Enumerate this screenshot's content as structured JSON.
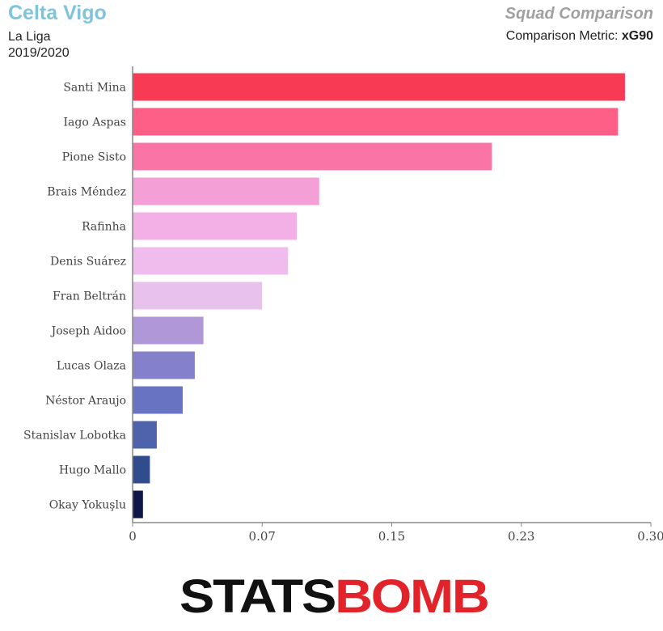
{
  "header": {
    "team": "Celta Vigo",
    "league": "La Liga",
    "season": "2019/2020",
    "title": "Squad Comparison",
    "metric_label": "Comparison Metric:",
    "metric_value": "xG90"
  },
  "logo": {
    "part1": "STATS",
    "part2": "BOMB"
  },
  "chart_data": {
    "type": "bar",
    "orientation": "horizontal",
    "categories": [
      "Santi Mina",
      "Iago Aspas",
      "Pione Sisto",
      "Brais Méndez",
      "Rafinha",
      "Denis Suárez",
      "Fran Beltrán",
      "Joseph Aidoo",
      "Lucas Olaza",
      "Néstor Araujo",
      "Stanislav Lobotka",
      "Hugo Mallo",
      "Okay Yokuşlu"
    ],
    "values": [
      0.285,
      0.281,
      0.208,
      0.108,
      0.095,
      0.09,
      0.075,
      0.041,
      0.036,
      0.029,
      0.014,
      0.01,
      0.006
    ],
    "colors": [
      "#f83a54",
      "#fd5f86",
      "#fb74a6",
      "#f4a0d6",
      "#f2b0e6",
      "#f0bcee",
      "#e8c2ed",
      "#b098d8",
      "#8580cc",
      "#6874c2",
      "#4f63ad",
      "#314c8c",
      "#0f1749"
    ],
    "xticks": [
      "0",
      "0.07",
      "0.15",
      "0.23",
      "0.30"
    ],
    "xlim": [
      0,
      0.3
    ],
    "grid": false
  }
}
